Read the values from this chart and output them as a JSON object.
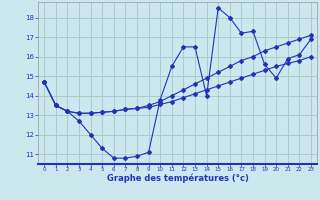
{
  "xlabel": "Graphe des températures (°c)",
  "background_color": "#cce8ee",
  "grid_color": "#aacccc",
  "line_color": "#2233bb",
  "axis_label_color": "#1133cc",
  "xlim": [
    -0.5,
    23.5
  ],
  "ylim": [
    10.5,
    18.8
  ],
  "xticks": [
    0,
    1,
    2,
    3,
    4,
    5,
    6,
    7,
    8,
    9,
    10,
    11,
    12,
    13,
    14,
    15,
    16,
    17,
    18,
    19,
    20,
    21,
    22,
    23
  ],
  "yticks": [
    11,
    12,
    13,
    14,
    15,
    16,
    17,
    18
  ],
  "curve1_x": [
    0,
    1,
    2,
    3,
    4,
    5,
    6,
    7,
    8,
    9,
    10,
    11,
    12,
    13,
    14,
    15,
    16,
    17,
    18,
    19,
    20,
    21,
    22,
    23
  ],
  "curve1_y": [
    14.7,
    13.5,
    13.2,
    12.7,
    12.0,
    11.3,
    10.8,
    10.8,
    10.9,
    11.1,
    13.8,
    15.5,
    16.5,
    16.5,
    14.0,
    18.5,
    18.0,
    17.2,
    17.3,
    15.6,
    14.9,
    15.9,
    16.1,
    16.9
  ],
  "curve2_x": [
    0,
    1,
    2,
    3,
    4,
    5,
    6,
    7,
    8,
    9,
    10,
    11,
    12,
    13,
    14,
    15,
    16,
    17,
    18,
    19,
    20,
    21,
    22,
    23
  ],
  "curve2_y": [
    14.7,
    13.5,
    13.2,
    13.1,
    13.1,
    13.15,
    13.2,
    13.3,
    13.35,
    13.4,
    13.55,
    13.7,
    13.9,
    14.1,
    14.3,
    14.5,
    14.7,
    14.9,
    15.1,
    15.3,
    15.5,
    15.65,
    15.8,
    16.0
  ],
  "curve3_x": [
    0,
    1,
    2,
    3,
    4,
    5,
    6,
    7,
    8,
    9,
    10,
    11,
    12,
    13,
    14,
    15,
    16,
    17,
    18,
    19,
    20,
    21,
    22,
    23
  ],
  "curve3_y": [
    14.7,
    13.5,
    13.2,
    13.1,
    13.1,
    13.15,
    13.2,
    13.3,
    13.35,
    13.5,
    13.7,
    14.0,
    14.3,
    14.6,
    14.9,
    15.2,
    15.5,
    15.8,
    16.0,
    16.3,
    16.5,
    16.7,
    16.9,
    17.1
  ]
}
